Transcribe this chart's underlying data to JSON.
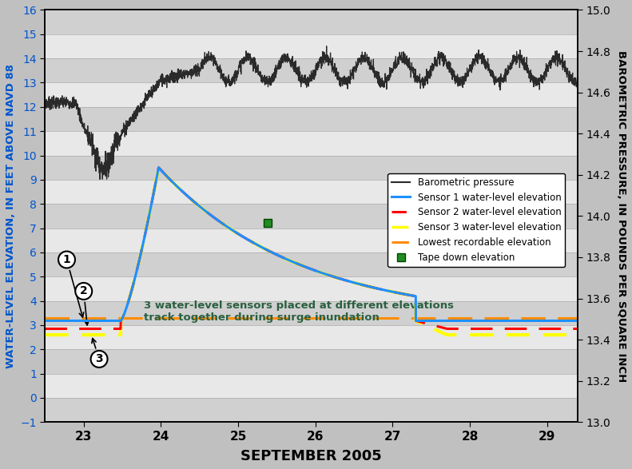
{
  "title": "SEPTEMBER 2005",
  "ylabel_left": "WATER-LEVEL ELEVATION, IN FEET ABOVE NAVD 88",
  "ylabel_right": "BAROMETRIC PRESSURE, IN POUNDS PER SQUARE INCH",
  "ylim_left": [
    -1.0,
    16.0
  ],
  "ylim_right": [
    13.0,
    15.0
  ],
  "xlim": [
    22.5,
    29.4
  ],
  "xticks": [
    23,
    24,
    25,
    26,
    27,
    28,
    29
  ],
  "yticks_left": [
    -1.0,
    0.0,
    1.0,
    2.0,
    3.0,
    4.0,
    5.0,
    6.0,
    7.0,
    8.0,
    9.0,
    10.0,
    11.0,
    12.0,
    13.0,
    14.0,
    15.0,
    16.0
  ],
  "yticks_right": [
    13.0,
    13.2,
    13.4,
    13.6,
    13.8,
    14.0,
    14.2,
    14.4,
    14.6,
    14.8,
    15.0
  ],
  "stripe_dark": "#d0d0d0",
  "stripe_light": "#e8e8e8",
  "fig_bg": "#c0c0c0",
  "sensor1_color": "#1e90ff",
  "sensor2_color": "#ff0000",
  "sensor3_color": "#ffff00",
  "lowest_color": "#ff8c00",
  "baro_color": "#2a2a2a",
  "tape_color": "#228B22",
  "lowest_elevation": 3.28,
  "tape_x": 25.38,
  "tape_y": 7.22,
  "annotation_text": "3 water-level sensors placed at different elevations\ntrack together during surge inundation",
  "annotation_color": "#2a6040",
  "sensor1_rest": 3.18,
  "sensor2_rest": 2.85,
  "sensor3_rest": 2.6,
  "surge_peak": 9.5,
  "surge_peak_t": 23.97,
  "surge_rise_start": 23.48,
  "surge_sep_t": 27.3
}
